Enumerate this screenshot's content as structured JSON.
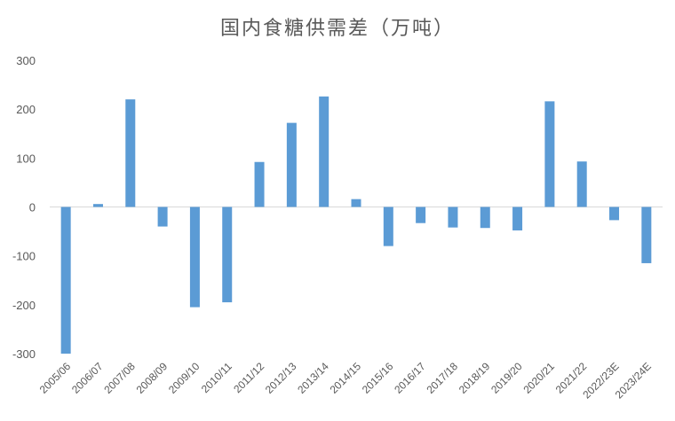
{
  "chart_data": {
    "type": "bar",
    "title": "国内食糖供需差（万吨）",
    "xlabel": "",
    "ylabel": "",
    "ylim": [
      -300,
      300
    ],
    "yticks": [
      300,
      200,
      100,
      0,
      -100,
      -200,
      -300
    ],
    "grid": false,
    "bar_color": "#5B9BD5",
    "categories": [
      "2005/06",
      "2006/07",
      "2007/08",
      "2008/09",
      "2009/10",
      "2010/11",
      "2011/12",
      "2012/13",
      "2013/14",
      "2014/15",
      "2015/16",
      "2016/17",
      "2017/18",
      "2018/19",
      "2019/20",
      "2020/21",
      "2021/22",
      "2022/23E",
      "2023/24E"
    ],
    "values": [
      -300,
      6,
      220,
      -40,
      -205,
      -195,
      92,
      172,
      226,
      16,
      -80,
      -33,
      -42,
      -43,
      -48,
      216,
      93,
      -27,
      -115
    ]
  }
}
